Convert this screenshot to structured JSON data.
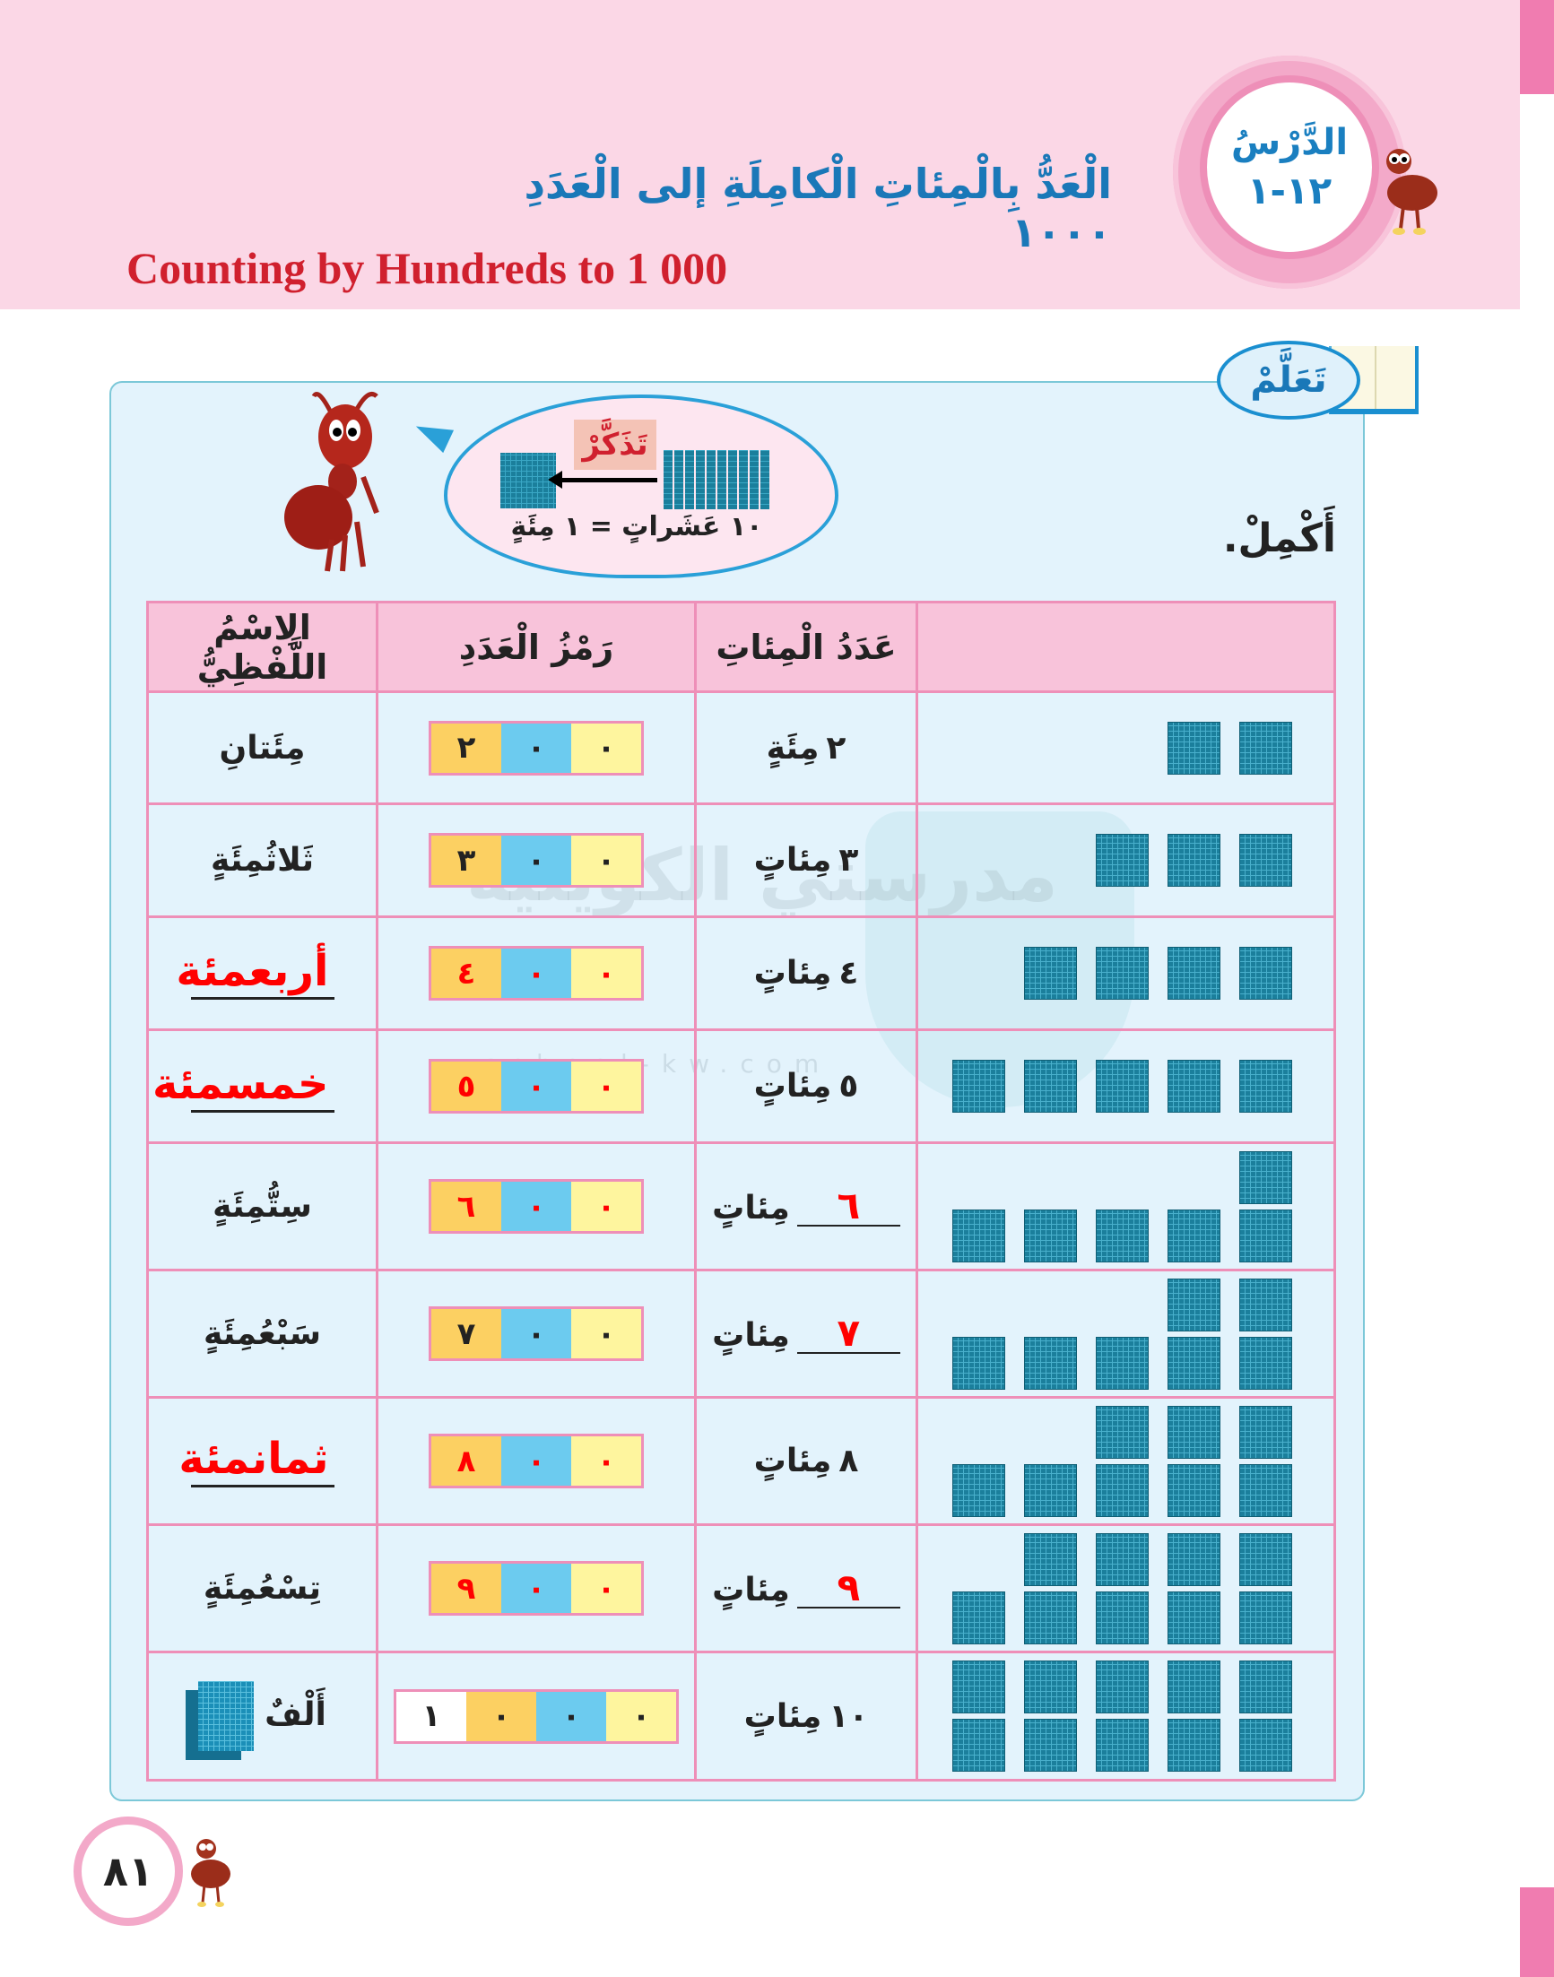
{
  "header": {
    "lesson_label": "الدَّرْسُ",
    "lesson_number": "١٢-١",
    "title_ar": "الْعَدُّ بِالْمِئاتِ الْكامِلَةِ إلى الْعَدَدِ ١٠٠٠",
    "title_en": "Counting by Hundreds to 1 000"
  },
  "learn_badge": "تَعَلَّمْ",
  "bubble": {
    "remember": "تَذَكَّرْ",
    "equation": "١٠ عَشَراتٍ = ١ مِئَةٍ"
  },
  "instruction": "أَكْمِلْ.",
  "table": {
    "headers": [
      "",
      "عَدَدُ الْمِئاتِ",
      "رَمْزُ الْعَدَدِ",
      "الِاسْمُ اللَّفْظِيُّ"
    ],
    "rows": [
      {
        "blocks": 2,
        "count_num": "٢",
        "count_word": "مِئَةٍ",
        "count_blank": false,
        "digits": [
          "٢",
          "٠",
          "٠"
        ],
        "digits_red": false,
        "name": "مِئَتانِ",
        "name_filled": false
      },
      {
        "blocks": 3,
        "count_num": "٣",
        "count_word": "مِئاتٍ",
        "count_blank": false,
        "digits": [
          "٣",
          "٠",
          "٠"
        ],
        "digits_red": false,
        "name": "ثَلاثُمِئَةٍ",
        "name_filled": false
      },
      {
        "blocks": 4,
        "count_num": "٤",
        "count_word": "مِئاتٍ",
        "count_blank": false,
        "digits": [
          "٤",
          "٠",
          "٠"
        ],
        "digits_red": true,
        "name": "أربعمئة",
        "name_filled": true
      },
      {
        "blocks": 5,
        "count_num": "٥",
        "count_word": "مِئاتٍ",
        "count_blank": false,
        "digits": [
          "٥",
          "٠",
          "٠"
        ],
        "digits_red": true,
        "name": "خمسمئة",
        "name_filled": true
      },
      {
        "blocks": 6,
        "count_num": "٦",
        "count_word": "مِئاتٍ",
        "count_blank": true,
        "digits": [
          "٦",
          "٠",
          "٠"
        ],
        "digits_red": true,
        "name": "سِتُّمِئَةٍ",
        "name_filled": false
      },
      {
        "blocks": 7,
        "count_num": "٧",
        "count_word": "مِئاتٍ",
        "count_blank": true,
        "digits": [
          "٧",
          "٠",
          "٠"
        ],
        "digits_red": false,
        "name": "سَبْعُمِئَةٍ",
        "name_filled": false
      },
      {
        "blocks": 8,
        "count_num": "٨",
        "count_word": "مِئاتٍ",
        "count_blank": false,
        "digits": [
          "٨",
          "٠",
          "٠"
        ],
        "digits_red": true,
        "name": "ثمانمئة",
        "name_filled": true
      },
      {
        "blocks": 9,
        "count_num": "٩",
        "count_word": "مِئاتٍ",
        "count_blank": true,
        "digits": [
          "٩",
          "٠",
          "٠"
        ],
        "digits_red": true,
        "name": "تِسْعُمِئَةٍ",
        "name_filled": false
      },
      {
        "blocks": 10,
        "count_num": "١٠",
        "count_word": "مِئاتٍ",
        "count_blank": false,
        "digits": [
          "١",
          "٠",
          "٠",
          "٠"
        ],
        "digits_red": false,
        "name": "أَلْفٌ",
        "name_filled": false,
        "cube_icon": true
      }
    ]
  },
  "watermark": {
    "ar": "مدرستي الكويتية",
    "url": "school-kw.com"
  },
  "page_number": "٨١",
  "colors": {
    "header_bg": "#fbd7e6",
    "title_blue": "#1a78b8",
    "title_red": "#d0202e",
    "answer_red": "#ff0000",
    "table_border": "#ee8fb8",
    "block": "#1b7f9c"
  }
}
